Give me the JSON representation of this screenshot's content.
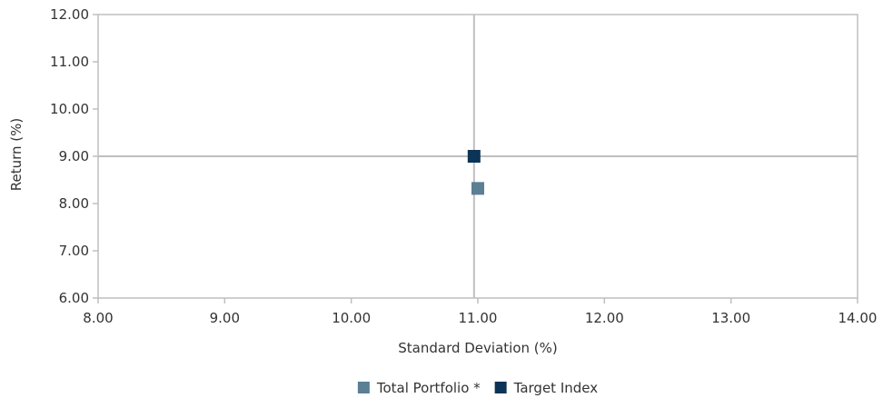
{
  "chart_data": {
    "type": "scatter",
    "title": "",
    "xlabel": "Standard Deviation (%)",
    "ylabel": "Return (%)",
    "xlim": [
      8.0,
      14.0
    ],
    "ylim": [
      6.0,
      12.0
    ],
    "x_ticks": [
      "8.00",
      "9.00",
      "10.00",
      "11.00",
      "12.00",
      "13.00",
      "14.00"
    ],
    "y_ticks": [
      "6.00",
      "7.00",
      "8.00",
      "9.00",
      "10.00",
      "11.00",
      "12.00"
    ],
    "reference_lines": {
      "x": 10.97,
      "y": 9.0
    },
    "grid": false,
    "legend_position": "bottom-center",
    "series": [
      {
        "name": "Total Portfolio *",
        "color": "#5b7f95",
        "marker": "square",
        "points": [
          {
            "x": 11.0,
            "y": 8.32
          }
        ]
      },
      {
        "name": "Target Index",
        "color": "#0b3456",
        "marker": "square",
        "points": [
          {
            "x": 10.97,
            "y": 9.0
          }
        ]
      }
    ]
  },
  "colors": {
    "axis_line": "#bfbfbf",
    "text": "#333333"
  }
}
